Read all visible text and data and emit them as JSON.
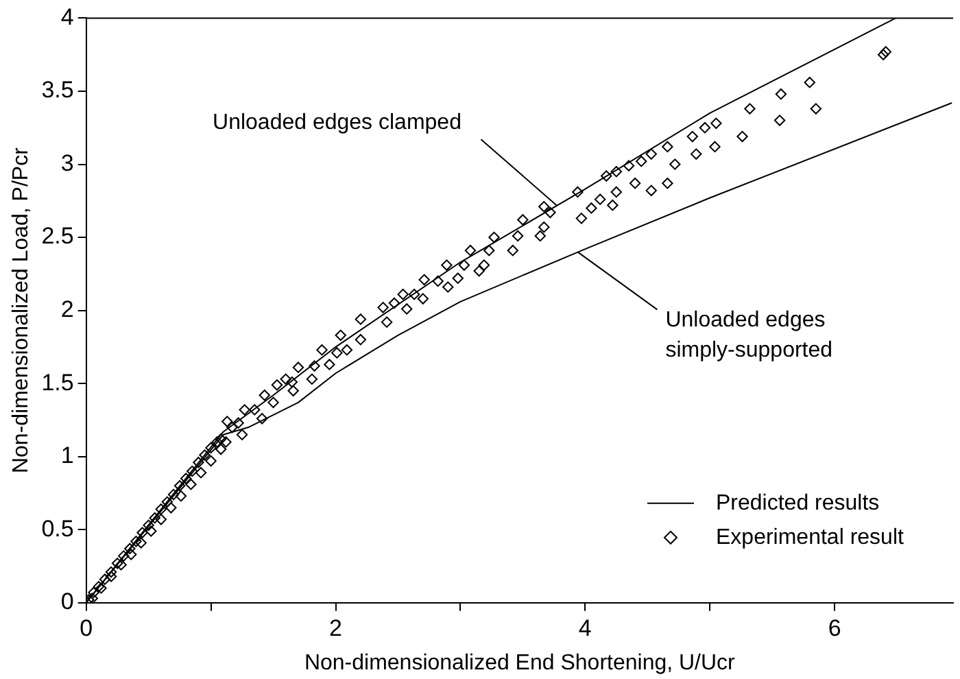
{
  "chart_data": {
    "type": "scatter",
    "xlabel": "Non-dimensionalized End Shortening, U/Ucr",
    "ylabel": "Non-dimensionalized Load, P/Pcr",
    "xlim": [
      0,
      6.95
    ],
    "ylim": [
      0,
      4
    ],
    "xticks": [
      0,
      {
        "value": 1,
        "label": null
      },
      2,
      {
        "value": 3,
        "label": null
      },
      4,
      {
        "value": 5,
        "label": null
      },
      6
    ],
    "yticks": [
      0,
      0.5,
      1,
      1.5,
      2,
      2.5,
      3,
      3.5,
      4
    ],
    "grid": false,
    "legend": "bottom right",
    "annotations": [
      {
        "text": "Unloaded edges clamped",
        "x": 3.77,
        "y": 2.72
      },
      {
        "text": "Unloaded edges simply-supported",
        "x": 3.94,
        "y": 2.4
      }
    ],
    "series": [
      {
        "name": "Predicted results",
        "type": "line",
        "color": "#000000",
        "marker": "none",
        "x": [
          0,
          1.1,
          1.5,
          2,
          3,
          4,
          5,
          6.49
        ],
        "values": [
          0,
          1.17,
          1.42,
          1.75,
          2.33,
          2.83,
          3.35,
          4
        ]
      },
      {
        "type": "line",
        "color": "#000000",
        "marker": "none",
        "x": [
          0,
          1.1,
          1.3,
          1.7,
          2,
          2.5,
          3,
          4,
          5,
          6.94
        ],
        "values": [
          0,
          1.15,
          1.2,
          1.37,
          1.57,
          1.83,
          2.06,
          2.42,
          2.77,
          3.42
        ]
      },
      {
        "name": "Experimental result",
        "type": "scatter",
        "color": "#000000",
        "marker": "diamond",
        "x": [
          0.02,
          0.06,
          0.1,
          0.15,
          0.2,
          0.25,
          0.3,
          0.35,
          0.4,
          0.45,
          0.5,
          0.55,
          0.6,
          0.65,
          0.7,
          0.75,
          0.8,
          0.85,
          0.9,
          0.95,
          1.0,
          1.05,
          1.08,
          0.05,
          0.12,
          0.2,
          0.28,
          0.36,
          0.44,
          0.52,
          0.6,
          0.68,
          0.76,
          0.84,
          0.92,
          1.0,
          1.08,
          1.12,
          6.39,
          6.41,
          5.8,
          5.57,
          5.32,
          5.56,
          5.85,
          5.26,
          5.05,
          4.96,
          4.86,
          5.04,
          4.89,
          4.72,
          4.66,
          4.53,
          4.45,
          4.35,
          4.25,
          4.17,
          4.66,
          4.53,
          4.4,
          4.25,
          4.22,
          4.12,
          3.94,
          4.05,
          3.97,
          3.67,
          3.72,
          3.67,
          3.5,
          3.46,
          3.64,
          3.42,
          3.27,
          3.23,
          3.08,
          3.19,
          3.03,
          3.15,
          2.98,
          2.89,
          2.9,
          2.82,
          2.7,
          2.71,
          2.63,
          2.54,
          2.57,
          2.47,
          2.38,
          2.41,
          2.2,
          2.2,
          2.04,
          2.01,
          2.09,
          1.89,
          1.95,
          1.83,
          1.7,
          1.81,
          1.65,
          1.6,
          1.53,
          1.5,
          1.43,
          1.66,
          1.35,
          1.41,
          1.27,
          1.22,
          1.25,
          1.17,
          1.13
        ],
        "values": [
          0.02,
          0.07,
          0.11,
          0.16,
          0.21,
          0.27,
          0.32,
          0.37,
          0.42,
          0.48,
          0.53,
          0.58,
          0.64,
          0.69,
          0.74,
          0.8,
          0.85,
          0.9,
          0.96,
          1.01,
          1.06,
          1.1,
          1.12,
          0.03,
          0.1,
          0.18,
          0.26,
          0.33,
          0.41,
          0.49,
          0.57,
          0.65,
          0.73,
          0.81,
          0.89,
          0.97,
          1.05,
          1.1,
          3.75,
          3.77,
          3.56,
          3.48,
          3.38,
          3.3,
          3.38,
          3.19,
          3.28,
          3.25,
          3.19,
          3.12,
          3.07,
          3.0,
          3.12,
          3.07,
          3.02,
          2.99,
          2.95,
          2.92,
          2.87,
          2.82,
          2.87,
          2.81,
          2.72,
          2.76,
          2.81,
          2.7,
          2.63,
          2.71,
          2.67,
          2.57,
          2.62,
          2.51,
          2.51,
          2.41,
          2.5,
          2.41,
          2.41,
          2.31,
          2.31,
          2.27,
          2.22,
          2.31,
          2.16,
          2.2,
          2.08,
          2.21,
          2.11,
          2.11,
          2.01,
          2.05,
          2.02,
          1.92,
          1.94,
          1.8,
          1.83,
          1.71,
          1.73,
          1.73,
          1.63,
          1.62,
          1.61,
          1.53,
          1.51,
          1.53,
          1.49,
          1.37,
          1.42,
          1.45,
          1.32,
          1.26,
          1.32,
          1.23,
          1.15,
          1.2,
          1.24
        ]
      }
    ]
  }
}
